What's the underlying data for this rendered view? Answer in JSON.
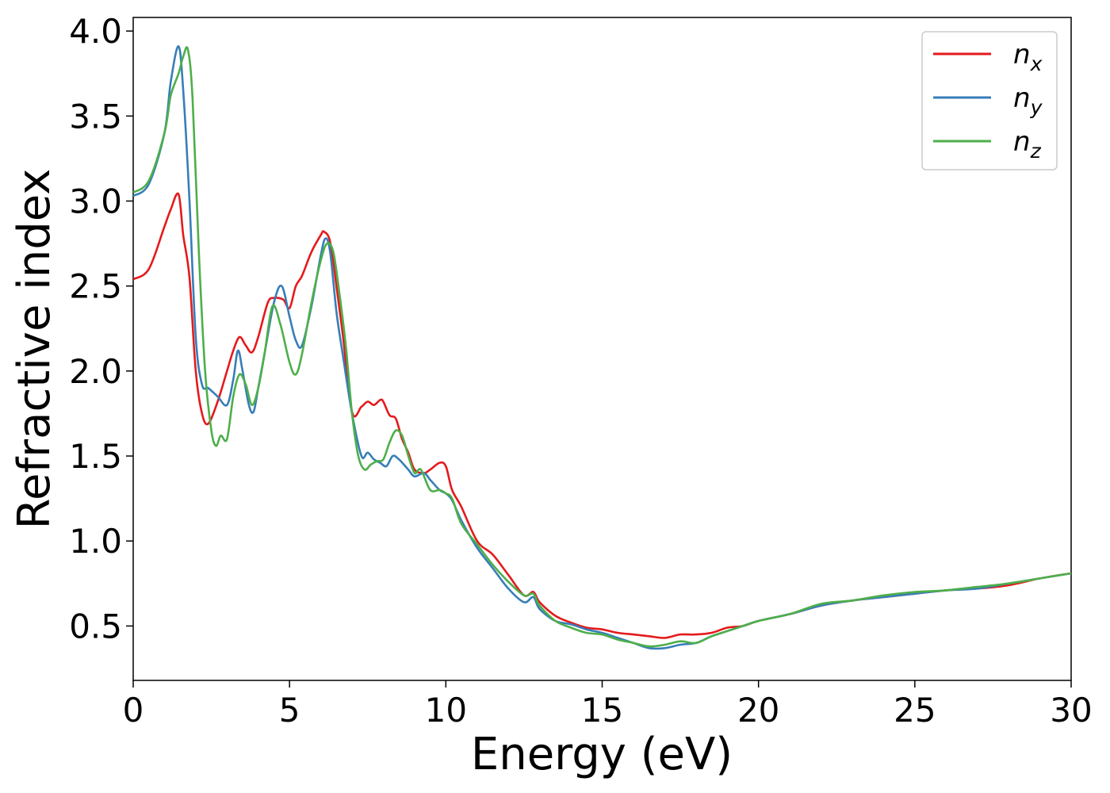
{
  "chart_data": {
    "type": "line",
    "title": "",
    "xlabel": "Energy (eV)",
    "ylabel": "Refractive index",
    "xlim": [
      0,
      30
    ],
    "ylim": [
      0.18,
      4.08
    ],
    "xticks": [
      0,
      5,
      10,
      15,
      20,
      25,
      30
    ],
    "xtick_labels": [
      "0",
      "5",
      "10",
      "15",
      "20",
      "25",
      "30"
    ],
    "yticks": [
      0.5,
      1.0,
      1.5,
      2.0,
      2.5,
      3.0,
      3.5,
      4.0
    ],
    "ytick_labels": [
      "0.5",
      "1.0",
      "1.5",
      "2.0",
      "2.5",
      "3.0",
      "3.5",
      "4.0"
    ],
    "grid": false,
    "legend_position": "top-right",
    "series": [
      {
        "name": "n",
        "subscript": "x",
        "color": "#e41a1c",
        "x": [
          0,
          0.5,
          1.0,
          1.2,
          1.45,
          1.6,
          1.8,
          2.0,
          2.2,
          2.4,
          2.7,
          3.0,
          3.2,
          3.4,
          3.6,
          3.8,
          4.0,
          4.3,
          4.5,
          4.8,
          5.0,
          5.2,
          5.4,
          5.7,
          6.0,
          6.1,
          6.3,
          6.5,
          6.7,
          7.0,
          7.3,
          7.5,
          7.7,
          7.9,
          8.0,
          8.2,
          8.4,
          8.6,
          8.8,
          9.0,
          9.3,
          9.5,
          9.8,
          10.0,
          10.2,
          10.5,
          11.0,
          11.5,
          12.0,
          12.5,
          12.8,
          13.0,
          13.5,
          14.0,
          14.5,
          15.0,
          15.5,
          16.0,
          16.5,
          17.0,
          17.5,
          18.0,
          18.5,
          19.0,
          19.5,
          20.0,
          21.0,
          22.0,
          23.0,
          24.0,
          25.0,
          26.0,
          27.0,
          28.0,
          29.0,
          30.0
        ],
        "y": [
          2.54,
          2.6,
          2.85,
          2.95,
          3.04,
          2.8,
          2.55,
          2.0,
          1.75,
          1.69,
          1.82,
          2.0,
          2.12,
          2.2,
          2.15,
          2.11,
          2.2,
          2.4,
          2.43,
          2.42,
          2.37,
          2.5,
          2.56,
          2.7,
          2.8,
          2.82,
          2.76,
          2.5,
          2.22,
          1.76,
          1.79,
          1.82,
          1.8,
          1.83,
          1.82,
          1.74,
          1.72,
          1.6,
          1.52,
          1.42,
          1.4,
          1.42,
          1.46,
          1.44,
          1.3,
          1.2,
          1.0,
          0.92,
          0.8,
          0.68,
          0.7,
          0.64,
          0.56,
          0.52,
          0.49,
          0.48,
          0.46,
          0.45,
          0.44,
          0.43,
          0.45,
          0.45,
          0.46,
          0.49,
          0.5,
          0.53,
          0.57,
          0.62,
          0.65,
          0.67,
          0.69,
          0.71,
          0.72,
          0.74,
          0.78,
          0.81
        ]
      },
      {
        "name": "n",
        "subscript": "y",
        "color": "#377eb8",
        "x": [
          0,
          0.5,
          1.0,
          1.2,
          1.45,
          1.6,
          1.8,
          2.0,
          2.2,
          2.4,
          2.7,
          3.0,
          3.2,
          3.35,
          3.5,
          3.7,
          3.85,
          4.0,
          4.2,
          4.5,
          4.75,
          5.0,
          5.2,
          5.4,
          5.7,
          6.0,
          6.15,
          6.3,
          6.5,
          6.7,
          7.0,
          7.3,
          7.5,
          7.7,
          7.9,
          8.1,
          8.3,
          8.5,
          8.8,
          9.0,
          9.3,
          9.5,
          9.8,
          10.0,
          10.2,
          10.5,
          11.0,
          11.5,
          12.0,
          12.5,
          12.8,
          13.0,
          13.5,
          14.0,
          14.5,
          15.0,
          15.5,
          16.0,
          16.5,
          17.0,
          17.5,
          18.0,
          18.5,
          19.0,
          19.5,
          20.0,
          21.0,
          22.0,
          23.0,
          24.0,
          25.0,
          26.0,
          27.0,
          28.0,
          29.0,
          30.0
        ],
        "y": [
          3.03,
          3.1,
          3.4,
          3.7,
          3.91,
          3.65,
          3.0,
          2.2,
          1.92,
          1.9,
          1.85,
          1.8,
          1.95,
          2.12,
          2.0,
          1.8,
          1.76,
          1.9,
          2.1,
          2.4,
          2.5,
          2.32,
          2.18,
          2.15,
          2.38,
          2.68,
          2.78,
          2.7,
          2.35,
          2.1,
          1.75,
          1.5,
          1.52,
          1.48,
          1.46,
          1.44,
          1.5,
          1.48,
          1.42,
          1.38,
          1.4,
          1.36,
          1.3,
          1.28,
          1.24,
          1.12,
          0.96,
          0.84,
          0.72,
          0.64,
          0.67,
          0.6,
          0.53,
          0.51,
          0.48,
          0.46,
          0.43,
          0.4,
          0.37,
          0.37,
          0.39,
          0.4,
          0.44,
          0.47,
          0.5,
          0.53,
          0.57,
          0.62,
          0.65,
          0.67,
          0.69,
          0.71,
          0.72,
          0.75,
          0.78,
          0.81
        ]
      },
      {
        "name": "n",
        "subscript": "z",
        "color": "#4daf4a",
        "x": [
          0,
          0.5,
          1.0,
          1.2,
          1.45,
          1.6,
          1.75,
          1.9,
          2.1,
          2.3,
          2.5,
          2.65,
          2.8,
          3.0,
          3.2,
          3.4,
          3.6,
          3.8,
          4.0,
          4.2,
          4.45,
          4.7,
          5.0,
          5.2,
          5.4,
          5.7,
          6.0,
          6.2,
          6.4,
          6.6,
          6.8,
          7.0,
          7.2,
          7.4,
          7.6,
          7.8,
          8.0,
          8.2,
          8.4,
          8.6,
          8.8,
          9.0,
          9.2,
          9.5,
          9.8,
          10.0,
          10.2,
          10.5,
          11.0,
          11.5,
          12.0,
          12.5,
          12.8,
          13.0,
          13.5,
          14.0,
          14.5,
          15.0,
          15.5,
          16.0,
          16.5,
          17.0,
          17.5,
          18.0,
          18.5,
          19.0,
          19.5,
          20.0,
          21.0,
          22.0,
          23.0,
          24.0,
          25.0,
          26.0,
          27.0,
          28.0,
          29.0,
          30.0
        ],
        "y": [
          3.05,
          3.12,
          3.4,
          3.62,
          3.75,
          3.85,
          3.89,
          3.6,
          2.7,
          2.0,
          1.65,
          1.56,
          1.62,
          1.6,
          1.85,
          1.98,
          1.92,
          1.8,
          1.9,
          2.1,
          2.38,
          2.28,
          2.05,
          1.98,
          2.1,
          2.4,
          2.65,
          2.75,
          2.7,
          2.45,
          2.15,
          1.75,
          1.5,
          1.42,
          1.45,
          1.47,
          1.48,
          1.58,
          1.65,
          1.62,
          1.5,
          1.4,
          1.42,
          1.3,
          1.3,
          1.28,
          1.25,
          1.1,
          0.98,
          0.86,
          0.76,
          0.68,
          0.69,
          0.62,
          0.53,
          0.49,
          0.46,
          0.45,
          0.42,
          0.4,
          0.38,
          0.39,
          0.41,
          0.4,
          0.44,
          0.47,
          0.5,
          0.53,
          0.57,
          0.63,
          0.65,
          0.68,
          0.7,
          0.71,
          0.73,
          0.75,
          0.78,
          0.81
        ]
      }
    ]
  }
}
